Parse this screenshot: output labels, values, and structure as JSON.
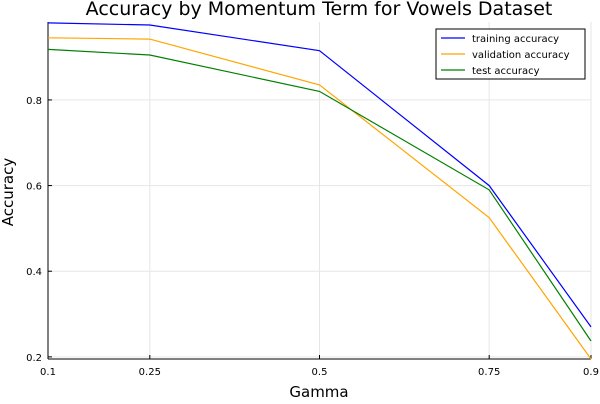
{
  "chart_data": {
    "type": "line",
    "title": "Accuracy by Momentum Term for Vowels Dataset",
    "xlabel": "Gamma",
    "ylabel": "Accuracy",
    "x": [
      0.1,
      0.25,
      0.5,
      0.75,
      0.9
    ],
    "x_tick_labels": [
      "0.1",
      "0.25",
      "0.5",
      "0.75",
      "0.9"
    ],
    "y_ticks": [
      0.2,
      0.4,
      0.6,
      0.8
    ],
    "y_tick_labels": [
      "0.2",
      "0.4",
      "0.6",
      "0.8"
    ],
    "ylim": [
      0.195,
      0.982
    ],
    "grid": true,
    "legend_position": "top-right",
    "series": [
      {
        "name": "training accuracy",
        "color": "#0000ff",
        "values": [
          0.98,
          0.975,
          0.915,
          0.6,
          0.27
        ]
      },
      {
        "name": "validation accuracy",
        "color": "#ffa500",
        "values": [
          0.945,
          0.942,
          0.835,
          0.525,
          0.195
        ]
      },
      {
        "name": "test accuracy",
        "color": "#008000",
        "values": [
          0.918,
          0.905,
          0.82,
          0.59,
          0.237
        ]
      }
    ]
  }
}
